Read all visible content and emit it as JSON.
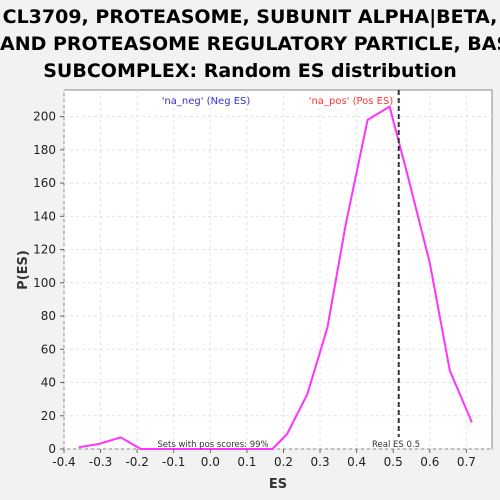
{
  "title_lines": [
    "CL3709, PROTEASOME, SUBUNIT ALPHA|BETA,",
    "AND PROTEASOME REGULATORY PARTICLE, BASE",
    "SUBCOMPLEX: Random ES distribution"
  ],
  "chart_data": {
    "type": "line",
    "xlabel": "ES",
    "ylabel": "P(ES)",
    "xlim": [
      -0.4,
      0.77
    ],
    "ylim": [
      0,
      216
    ],
    "x_ticks": [
      -0.4,
      -0.3,
      -0.2,
      -0.1,
      0.0,
      0.1,
      0.2,
      0.3,
      0.4,
      0.5,
      0.6,
      0.7
    ],
    "x_tick_labels": [
      "-0.4",
      "-0.3",
      "-0.2",
      "-0.1",
      "0.0",
      "0.1",
      "0.2",
      "0.3",
      "0.4",
      "0.5",
      "0.6",
      "0.7"
    ],
    "y_ticks": [
      0,
      20,
      40,
      60,
      80,
      100,
      120,
      140,
      160,
      180,
      200
    ],
    "y_tick_labels": [
      "0",
      "20",
      "40",
      "60",
      "80",
      "100",
      "120",
      "140",
      "160",
      "180",
      "200"
    ],
    "grid": true,
    "series": [
      {
        "color": "#ff33ff",
        "x": [
          -0.36,
          -0.305,
          -0.245,
          -0.19,
          -0.14,
          -0.09,
          -0.035,
          0.02,
          0.07,
          0.12,
          0.17,
          0.21,
          0.265,
          0.32,
          0.37,
          0.43,
          0.49,
          0.54,
          0.6,
          0.655,
          0.715
        ],
        "y": [
          1,
          3,
          7,
          0,
          0,
          0,
          0,
          0,
          0,
          0,
          0,
          9,
          33,
          73,
          135,
          198,
          206,
          164,
          112,
          47,
          16
        ]
      }
    ],
    "real_es": 0.515,
    "real_es_color": "#333333",
    "annotations": {
      "neg_label": "'na_neg' (Neg ES)",
      "neg_color": "#3333cc",
      "pos_label": "'na_pos' (Pos ES)",
      "pos_color": "#ff3333",
      "sets_text": "Sets with pos scores: 99%",
      "real_es_text": "Real ES 0.5"
    }
  }
}
